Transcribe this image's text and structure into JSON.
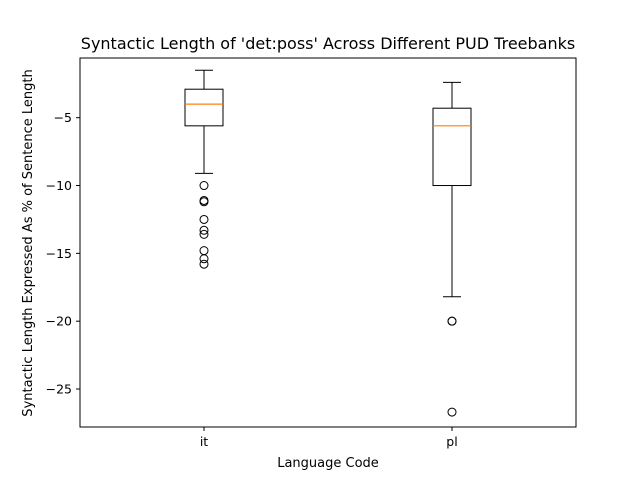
{
  "chart_data": {
    "type": "boxplot",
    "title": "Syntactic Length of 'det:poss' Across Different PUD Treebanks",
    "xlabel": "Language Code",
    "ylabel": "Syntactic Length Expressed As % of Sentence Length",
    "categories": [
      "it",
      "pl"
    ],
    "ylim": [
      -27.8,
      -0.6
    ],
    "yticks": [
      -5,
      -10,
      -15,
      -20,
      -25
    ],
    "ytick_labels": [
      "−5",
      "−10",
      "−15",
      "−20",
      "−25"
    ],
    "grid": false,
    "boxes": [
      {
        "category": "it",
        "whisker_low": -9.1,
        "q1": -5.6,
        "median": -4.0,
        "q3": -2.9,
        "whisker_high": -1.5,
        "outliers": [
          -10.0,
          -11.1,
          -11.2,
          -12.5,
          -13.3,
          -13.6,
          -14.8,
          -15.4,
          -15.8
        ]
      },
      {
        "category": "pl",
        "whisker_low": -18.2,
        "q1": -10.0,
        "median": -5.6,
        "q3": -4.3,
        "whisker_high": -2.4,
        "outliers": [
          -20.0,
          -20.0,
          -26.7
        ]
      }
    ],
    "colors": {
      "box": "#000000",
      "median": "#ff7f0e",
      "flier": "#000000"
    }
  }
}
